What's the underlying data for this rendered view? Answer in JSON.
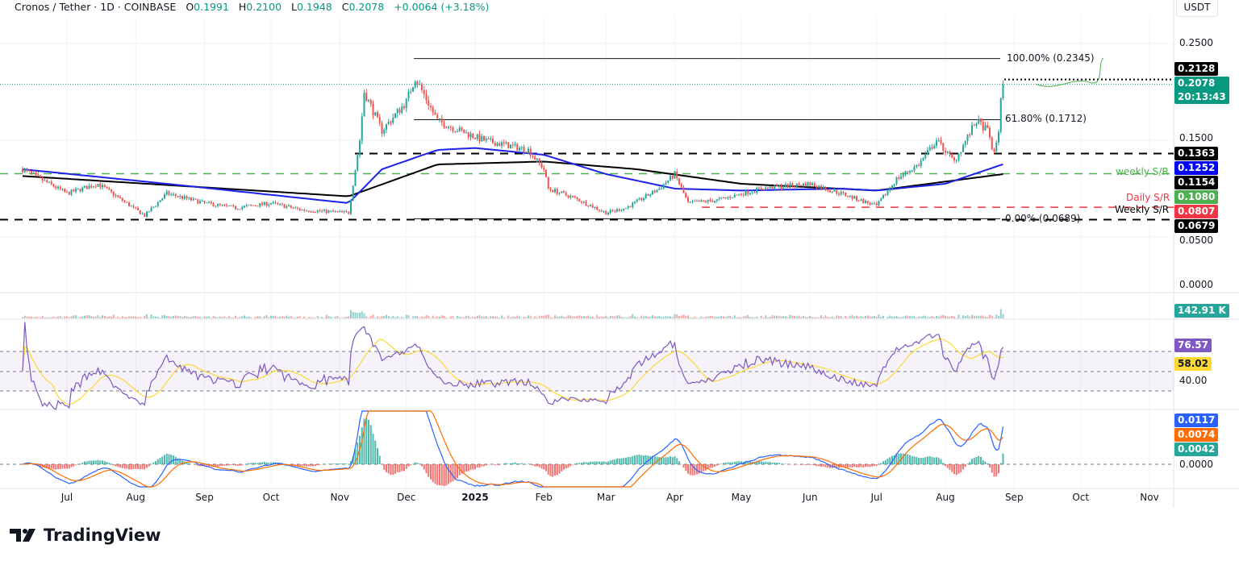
{
  "header": {
    "symbol": "Cronos / Tether · 1D · COINBASE",
    "open_label": "O",
    "open": "0.1991",
    "high_label": "H",
    "high": "0.2100",
    "low_label": "L",
    "low": "0.1948",
    "close_label": "C",
    "close": "0.2078",
    "change": "+0.0064 (+3.18%)"
  },
  "currency": "USDT",
  "price_ticks": [
    "0.2500",
    "0.1500",
    "0.0500",
    "0.0000"
  ],
  "price_labels": [
    {
      "text": "0.2128",
      "color": "#000000",
      "value": 0.2128
    },
    {
      "text": "0.2078",
      "color": "#089981",
      "value": 0.2078,
      "sub": "20:13:43"
    },
    {
      "text": "0.1363",
      "color": "#000000",
      "value": 0.1363
    },
    {
      "text": "0.1252",
      "color": "#0000ff",
      "value": 0.1252
    },
    {
      "text": "0.1154",
      "color": "#000000",
      "value": 0.1154
    },
    {
      "text": "0.1080",
      "color": "#4caf50",
      "value": 0.108
    },
    {
      "text": "0.0807",
      "color": "#f23645",
      "value": 0.0807
    },
    {
      "text": "0.0679",
      "color": "#000000",
      "value": 0.0679
    }
  ],
  "volume_label": {
    "text": "142.91 K",
    "color": "#26a69a"
  },
  "rsi": {
    "value": "76.57",
    "value_color": "#7e57c2",
    "ma": "58.02",
    "ma_color": "#fdd835",
    "tick": "40.00"
  },
  "macd": {
    "macd": "0.0117",
    "macd_color": "#2962ff",
    "signal": "0.0074",
    "signal_color": "#ff6d00",
    "hist": "0.0042",
    "hist_color": "#26a69a",
    "tick": "0.0000"
  },
  "annotations": {
    "fib_100": "100.00% (0.2345)",
    "fib_618": "61.80% (0.1712)",
    "fib_0": "0.00% (0.0689)",
    "weekly_sr_green": "weekly S/R",
    "daily_sr": "Daily S/R",
    "weekly_sr_black": "Weekly S/R"
  },
  "time_labels": [
    "Jul",
    "Aug",
    "Sep",
    "Oct",
    "Nov",
    "Dec",
    "2025",
    "Feb",
    "Mar",
    "Apr",
    "May",
    "Jun",
    "Jul",
    "Aug",
    "Sep",
    "Oct",
    "Nov"
  ],
  "logo": "TradingView",
  "chart_data": {
    "type": "candlestick",
    "title": "Cronos / Tether · 1D · COINBASE",
    "ylim": [
      0,
      0.27
    ],
    "close_path": [
      [
        "2024-06-11",
        0.12
      ],
      [
        "2024-07-01",
        0.095
      ],
      [
        "2024-07-15",
        0.105
      ],
      [
        "2024-08-05",
        0.072
      ],
      [
        "2024-08-15",
        0.095
      ],
      [
        "2024-09-01",
        0.085
      ],
      [
        "2024-09-15",
        0.08
      ],
      [
        "2024-10-01",
        0.085
      ],
      [
        "2024-10-15",
        0.078
      ],
      [
        "2024-11-05",
        0.075
      ],
      [
        "2024-11-10",
        0.15
      ],
      [
        "2024-11-12",
        0.2
      ],
      [
        "2024-11-20",
        0.16
      ],
      [
        "2024-12-01",
        0.19
      ],
      [
        "2024-12-05",
        0.215
      ],
      [
        "2024-12-15",
        0.17
      ],
      [
        "2024-12-25",
        0.16
      ],
      [
        "2025-01-05",
        0.15
      ],
      [
        "2025-01-15",
        0.145
      ],
      [
        "2025-01-25",
        0.14
      ],
      [
        "2025-02-01",
        0.12
      ],
      [
        "2025-02-03",
        0.1
      ],
      [
        "2025-02-15",
        0.09
      ],
      [
        "2025-03-01",
        0.075
      ],
      [
        "2025-03-10",
        0.08
      ],
      [
        "2025-03-25",
        0.1
      ],
      [
        "2025-04-01",
        0.115
      ],
      [
        "2025-04-07",
        0.085
      ],
      [
        "2025-04-20",
        0.088
      ],
      [
        "2025-05-10",
        0.1
      ],
      [
        "2025-06-01",
        0.105
      ],
      [
        "2025-06-15",
        0.095
      ],
      [
        "2025-07-01",
        0.082
      ],
      [
        "2025-07-10",
        0.11
      ],
      [
        "2025-07-20",
        0.125
      ],
      [
        "2025-07-28",
        0.15
      ],
      [
        "2025-08-05",
        0.128
      ],
      [
        "2025-08-15",
        0.17
      ],
      [
        "2025-08-20",
        0.16
      ],
      [
        "2025-08-23",
        0.135
      ],
      [
        "2025-08-25",
        0.16
      ],
      [
        "2025-08-26",
        0.195
      ],
      [
        "2025-08-27",
        0.2078
      ]
    ],
    "sma100_path": [
      [
        "2024-06-11",
        0.12
      ],
      [
        "2024-08-15",
        0.105
      ],
      [
        "2024-11-05",
        0.085
      ],
      [
        "2024-11-20",
        0.12
      ],
      [
        "2024-12-15",
        0.14
      ],
      [
        "2025-01-01",
        0.142
      ],
      [
        "2025-02-01",
        0.135
      ],
      [
        "2025-03-01",
        0.115
      ],
      [
        "2025-04-01",
        0.1
      ],
      [
        "2025-05-01",
        0.098
      ],
      [
        "2025-06-15",
        0.1
      ],
      [
        "2025-07-01",
        0.098
      ],
      [
        "2025-08-01",
        0.105
      ],
      [
        "2025-08-27",
        0.1252
      ]
    ],
    "sma200_path": [
      [
        "2024-06-11",
        0.113
      ],
      [
        "2024-11-05",
        0.092
      ],
      [
        "2024-12-15",
        0.125
      ],
      [
        "2025-02-01",
        0.128
      ],
      [
        "2025-03-15",
        0.12
      ],
      [
        "2025-05-01",
        0.105
      ],
      [
        "2025-07-01",
        0.098
      ],
      [
        "2025-08-27",
        0.115
      ]
    ],
    "levels": {
      "fib_100": 0.2345,
      "fib_618": 0.1712,
      "fib_0": 0.0689,
      "resistance": 0.1363,
      "weekly_sr": 0.1154,
      "daily_sr": 0.0807,
      "support": 0.0679,
      "high_marker": 0.2128
    },
    "colors": {
      "up": "#26a69a",
      "down": "#ef5350",
      "sma100": "#1e22e6",
      "sma200": "#000000",
      "rsi": "#7e57c2",
      "rsi_ma": "#fdd835",
      "macd": "#2962ff",
      "signal": "#ff6d00"
    }
  }
}
